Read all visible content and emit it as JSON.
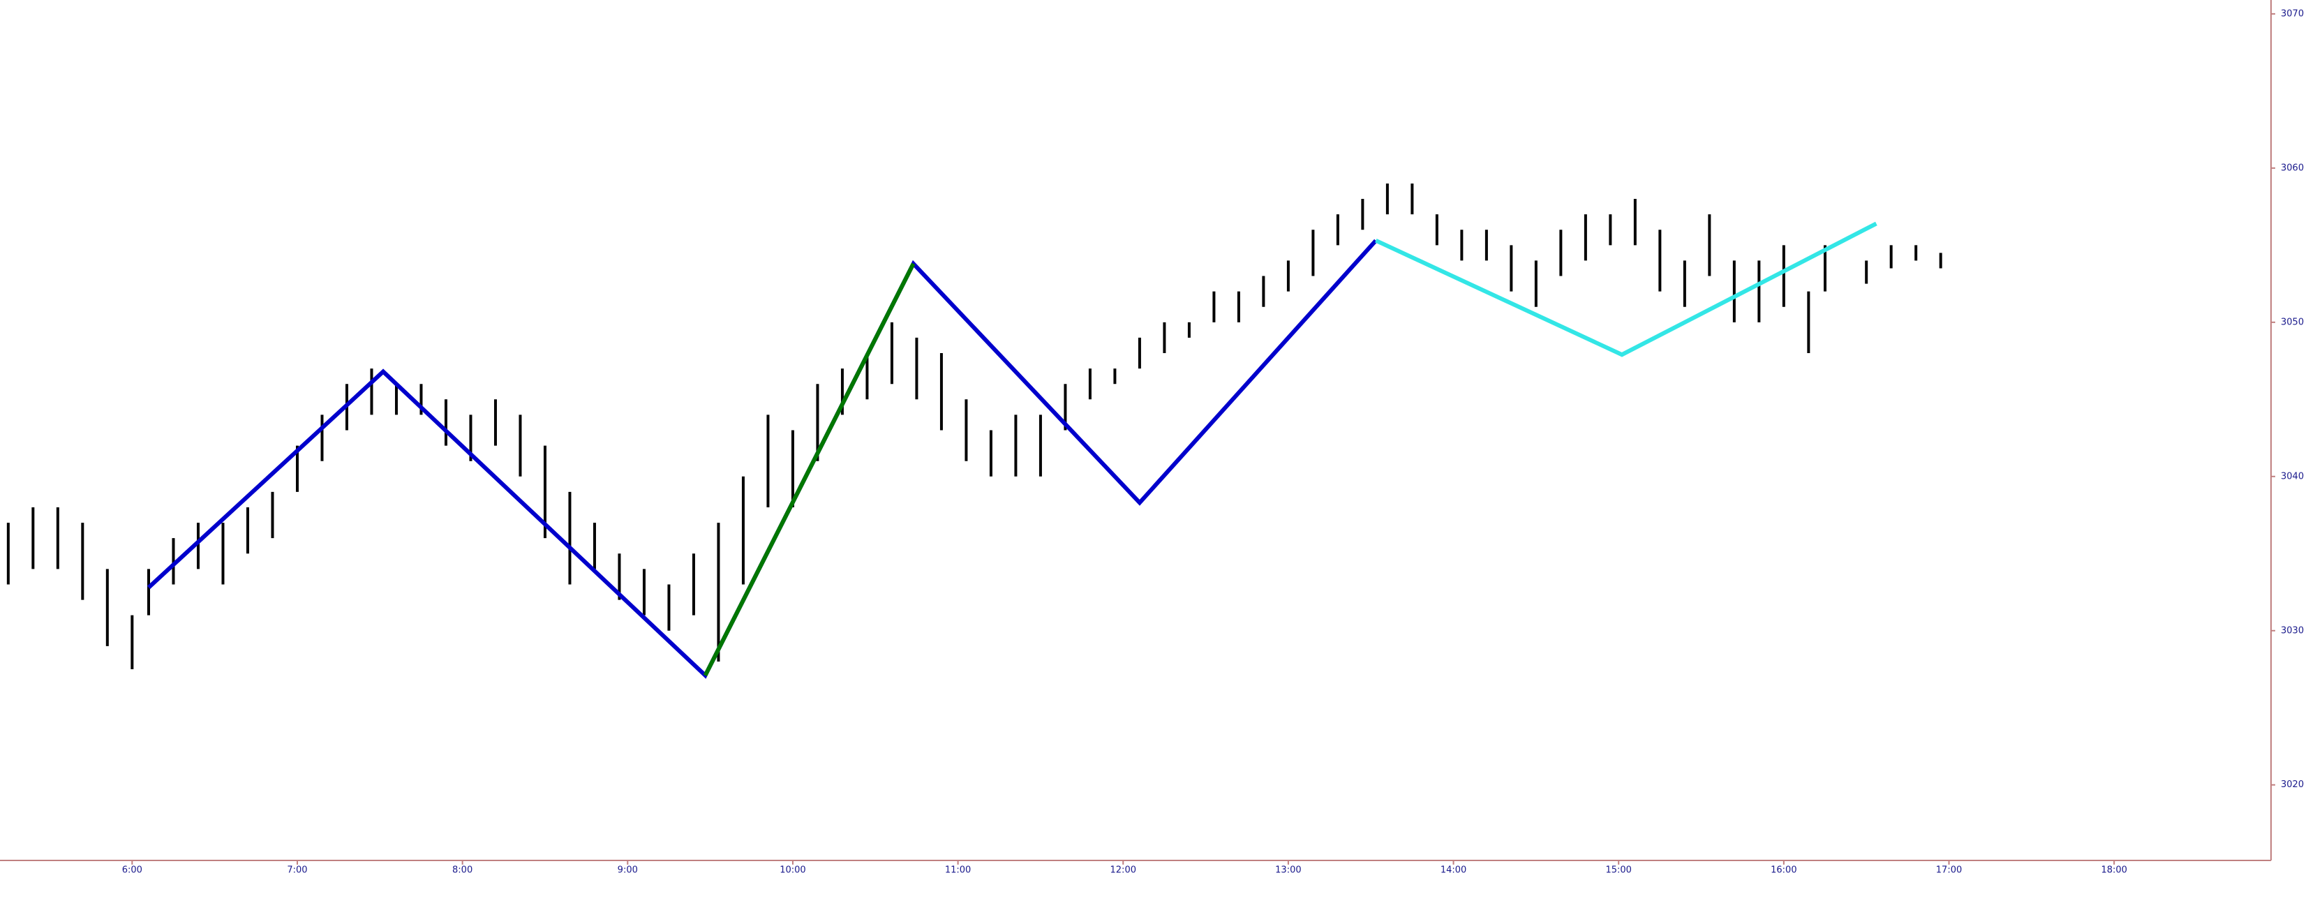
{
  "chart_data": {
    "type": "ohlc",
    "color": "#000000",
    "xlim": [
      5.2,
      18.95
    ],
    "ylim": [
      3015.1,
      3070.9
    ],
    "xticks": [
      {
        "value": 6,
        "label": "6:00"
      },
      {
        "value": 7,
        "label": "7:00"
      },
      {
        "value": 8,
        "label": "8:00"
      },
      {
        "value": 9,
        "label": "9:00"
      },
      {
        "value": 10,
        "label": "10:00"
      },
      {
        "value": 11,
        "label": "11:00"
      },
      {
        "value": 12,
        "label": "12:00"
      },
      {
        "value": 13,
        "label": "13:00"
      },
      {
        "value": 14,
        "label": "14:00"
      },
      {
        "value": 15,
        "label": "15:00"
      },
      {
        "value": 16,
        "label": "16:00"
      },
      {
        "value": 17,
        "label": "17:00"
      },
      {
        "value": 18,
        "label": "18:00"
      }
    ],
    "yticks": [
      3020,
      3030,
      3040,
      3050,
      3060,
      3070
    ],
    "x": [
      5.25,
      5.4,
      5.55,
      5.7,
      5.85,
      6.0,
      6.1,
      6.25,
      6.4,
      6.55,
      6.7,
      6.85,
      7.0,
      7.15,
      7.3,
      7.45,
      7.6,
      7.75,
      7.9,
      8.05,
      8.2,
      8.35,
      8.5,
      8.65,
      8.8,
      8.95,
      9.1,
      9.25,
      9.4,
      9.55,
      9.7,
      9.85,
      10.0,
      10.15,
      10.3,
      10.45,
      10.6,
      10.75,
      10.9,
      11.05,
      11.2,
      11.35,
      11.5,
      11.65,
      11.8,
      11.95,
      12.1,
      12.25,
      12.4,
      12.55,
      12.7,
      12.85,
      13.0,
      13.15,
      13.3,
      13.45,
      13.6,
      13.75,
      13.9,
      14.05,
      14.2,
      14.35,
      14.5,
      14.65,
      14.8,
      14.95,
      15.1,
      15.25,
      15.4,
      15.55,
      15.7,
      15.85,
      16.0,
      16.15,
      16.25,
      16.5,
      16.65,
      16.8,
      16.95
    ],
    "highs": [
      3037,
      3038,
      3038,
      3037,
      3034,
      3031,
      3034,
      3036,
      3037,
      3037,
      3038,
      3039,
      3042,
      3044,
      3046,
      3047,
      3046,
      3046,
      3045,
      3044,
      3045,
      3044,
      3042,
      3039,
      3037,
      3035,
      3034,
      3033,
      3035,
      3037,
      3040,
      3044,
      3043,
      3046,
      3047,
      3048,
      3050,
      3049,
      3048,
      3045,
      3043,
      3044,
      3044,
      3046,
      3047,
      3047,
      3049,
      3050,
      3050,
      3052,
      3052,
      3053,
      3054,
      3056,
      3057,
      3058,
      3059,
      3059,
      3057,
      3056,
      3056,
      3055,
      3054,
      3056,
      3057,
      3057,
      3058,
      3056,
      3054,
      3057,
      3054,
      3054,
      3055,
      3052,
      3055,
      3054,
      3055,
      3055,
      3054.5
    ],
    "lows": [
      3033,
      3034,
      3034,
      3032,
      3029,
      3027.5,
      3031,
      3033,
      3034,
      3033,
      3035,
      3036,
      3039,
      3041,
      3043,
      3044,
      3044,
      3044,
      3042,
      3041,
      3042,
      3040,
      3036,
      3033,
      3034,
      3032,
      3031,
      3030,
      3031,
      3028,
      3033,
      3038,
      3038,
      3041,
      3044,
      3045,
      3046,
      3045,
      3043,
      3041,
      3040,
      3040,
      3040,
      3043,
      3045,
      3046,
      3047,
      3048,
      3049,
      3050,
      3050,
      3051,
      3052,
      3053,
      3055,
      3056,
      3057,
      3057,
      3055,
      3054,
      3054,
      3052,
      3051,
      3053,
      3054,
      3055,
      3055,
      3052,
      3051,
      3053,
      3050,
      3050,
      3051,
      3048,
      3052,
      3052.5,
      3053.5,
      3054,
      3053.5
    ],
    "series": [
      {
        "color": "#0000cc",
        "x": [
          6.1,
          7.52,
          9.47,
          10.73,
          12.1,
          13.53
        ],
        "values": [
          3032.8,
          3046.8,
          3027.1,
          3053.8,
          3038.3,
          3055.3
        ]
      },
      {
        "color": "#007700",
        "x": [
          9.47,
          10.73
        ],
        "values": [
          3027.1,
          3053.8
        ]
      },
      {
        "color": "#33e6e6",
        "x": [
          13.53,
          15.02,
          16.56
        ],
        "values": [
          3055.3,
          3047.9,
          3056.4
        ]
      }
    ]
  }
}
